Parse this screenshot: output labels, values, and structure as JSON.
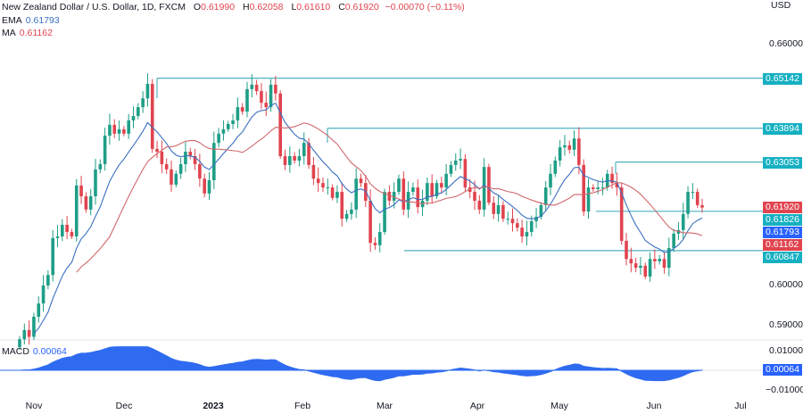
{
  "header": {
    "symbol": "New Zealand Dollar / U.S. Dollar, 1D, FXCM",
    "open_label": "O",
    "open": "0.61990",
    "high_label": "H",
    "high": "0.62058",
    "low_label": "L",
    "low": "0.61610",
    "close_label": "C",
    "close": "0.61920",
    "change": "−0.00070 (−0.11%)"
  },
  "indicators": {
    "ema_label": "EMA",
    "ema_value": "0.61793",
    "ma_label": "MA",
    "ma_value": "0.61162",
    "macd_label": "MACD",
    "macd_value": "0.00064"
  },
  "price_axis": {
    "currency": "USD",
    "ticks": [
      "0.66000",
      "0.59000",
      "0.60000"
    ],
    "macd_ticks": [
      "0.01000",
      "−0.01000"
    ]
  },
  "badges": {
    "level1": "0.65142",
    "level2": "0.63894",
    "level3": "0.63053",
    "close": "0.61920",
    "level4": "0.61826",
    "ema": "0.61793",
    "ma": "0.61162",
    "level5": "0.60847",
    "macd": "0.00064"
  },
  "time_axis": [
    "Nov",
    "Dec",
    "2023",
    "Feb",
    "Mar",
    "Apr",
    "May",
    "Jun",
    "Jul"
  ],
  "colors": {
    "up": "#1e9e86",
    "down": "#e0444f",
    "ema": "#3a6fc0",
    "ma": "#d0676c",
    "level": "#4fb3c2",
    "level_badge": "#16b0c2",
    "close_badge": "#e0444f",
    "ema_badge": "#2962ff",
    "ma_badge": "#e0444f",
    "macd_fill": "#2f6bf0"
  },
  "chart_data": {
    "type": "candlestick",
    "title": "New Zealand Dollar / U.S. Dollar, 1D, FXCM",
    "ylabel": "USD",
    "ylim": [
      0.585,
      0.665
    ],
    "x_ticks": [
      "Nov",
      "Dec",
      "2023",
      "Feb",
      "Mar",
      "Apr",
      "May",
      "Jun",
      "Jul"
    ],
    "closes": [
      0.5864,
      0.5887,
      0.587,
      0.592,
      0.5953,
      0.5998,
      0.6024,
      0.6116,
      0.612,
      0.6149,
      0.6131,
      0.612,
      0.6247,
      0.622,
      0.6187,
      0.622,
      0.6287,
      0.63,
      0.6371,
      0.6398,
      0.6376,
      0.6387,
      0.6376,
      0.6409,
      0.642,
      0.6442,
      0.6464,
      0.65,
      0.6338,
      0.6331,
      0.63,
      0.6287,
      0.6249,
      0.6276,
      0.63,
      0.6331,
      0.632,
      0.63,
      0.6264,
      0.6227,
      0.626,
      0.6353,
      0.6376,
      0.6387,
      0.64,
      0.6409,
      0.6442,
      0.6431,
      0.6487,
      0.6498,
      0.6482,
      0.6453,
      0.6442,
      0.6498,
      0.6476,
      0.632,
      0.6298,
      0.632,
      0.6309,
      0.632,
      0.6353,
      0.6298,
      0.6264,
      0.6253,
      0.6242,
      0.6242,
      0.6216,
      0.6231,
      0.6164,
      0.6176,
      0.6187,
      0.6264,
      0.6253,
      0.6209,
      0.6104,
      0.6098,
      0.6131,
      0.6231,
      0.6209,
      0.6231,
      0.6264,
      0.6187,
      0.6231,
      0.6242,
      0.6193,
      0.6209,
      0.6253,
      0.622,
      0.6253,
      0.6242,
      0.6276,
      0.6298,
      0.6309,
      0.6313,
      0.6242,
      0.6231,
      0.6209,
      0.6187,
      0.6293,
      0.6204,
      0.6176,
      0.6198,
      0.6164,
      0.6164,
      0.6153,
      0.6142,
      0.612,
      0.6131,
      0.6158,
      0.6169,
      0.6198,
      0.6242,
      0.6276,
      0.6309,
      0.6342,
      0.6347,
      0.6336,
      0.6364,
      0.6298,
      0.6182,
      0.6242,
      0.6238,
      0.6242,
      0.6242,
      0.6276,
      0.6253,
      0.6242,
      0.6109,
      0.6064,
      0.6053,
      0.6042,
      0.6047,
      0.602,
      0.6064,
      0.6058,
      0.6064,
      0.6042,
      0.6091,
      0.6127,
      0.6136,
      0.6176,
      0.6231,
      0.6231,
      0.6198,
      0.6192
    ],
    "levels": [
      0.65142,
      0.63894,
      0.63053,
      0.61826,
      0.60847
    ],
    "ema_last": 0.61793,
    "ma_last": 0.61162,
    "macd_last": 0.00064,
    "macd_ylim": [
      -0.01,
      0.01
    ]
  }
}
